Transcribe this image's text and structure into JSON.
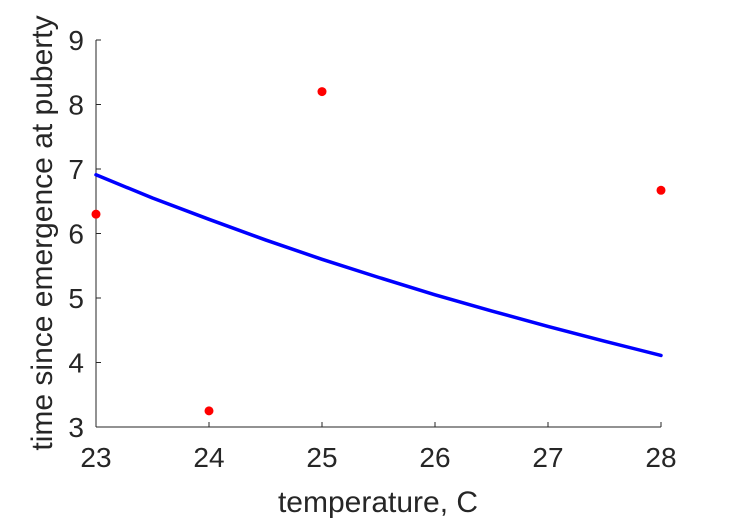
{
  "chart_data": {
    "type": "scatter",
    "title": "",
    "xlabel": "temperature, C",
    "ylabel": "time since emergence at puberty",
    "xlim": [
      23,
      28
    ],
    "ylim": [
      3,
      9
    ],
    "xticks": [
      23,
      24,
      25,
      26,
      27,
      28
    ],
    "yticks": [
      3,
      4,
      5,
      6,
      7,
      8,
      9
    ],
    "grid": false,
    "legend": "none",
    "series": [
      {
        "kind": "scatter",
        "color": "#ff0000",
        "x": [
          23,
          24,
          25,
          28
        ],
        "y": [
          6.3,
          3.25,
          8.2,
          6.67
        ]
      },
      {
        "kind": "line",
        "color": "#0000ff",
        "x": [
          23,
          23.5,
          24,
          24.5,
          25,
          25.5,
          26,
          26.5,
          27,
          27.5,
          28
        ],
        "y": [
          6.91,
          6.55,
          6.22,
          5.9,
          5.6,
          5.32,
          5.05,
          4.8,
          4.56,
          4.33,
          4.11
        ]
      }
    ]
  }
}
